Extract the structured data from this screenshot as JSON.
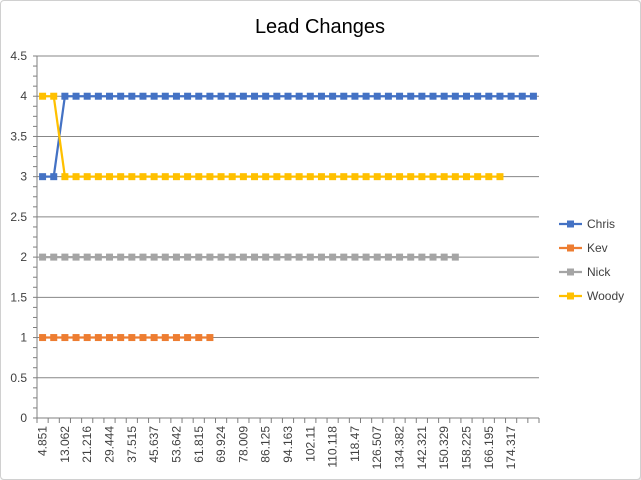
{
  "chart_data": {
    "type": "line",
    "title": "Lead Changes",
    "xlabel": "",
    "ylabel": "",
    "ylim": [
      0,
      4.5
    ],
    "y_ticks": [
      "0",
      "0.5",
      "1",
      "1.5",
      "2",
      "2.5",
      "3",
      "3.5",
      "4",
      "4.5"
    ],
    "x_ticks": [
      "4.851",
      "13.062",
      "21.216",
      "29.444",
      "37.515",
      "45.637",
      "53.642",
      "61.815",
      "69.924",
      "78.009",
      "86.125",
      "94.163",
      "102.11",
      "110.118",
      "118.47",
      "126.507",
      "134.382",
      "142.321",
      "150.329",
      "158.225",
      "166.195",
      "174.317"
    ],
    "grid": true,
    "legend_position": "right",
    "series": [
      {
        "name": "Chris",
        "color": "#4472C4",
        "values": [
          3,
          3,
          4,
          4,
          4,
          4,
          4,
          4,
          4,
          4,
          4,
          4,
          4,
          4,
          4,
          4,
          4,
          4,
          4,
          4,
          4,
          4,
          4,
          4,
          4,
          4,
          4,
          4,
          4,
          4,
          4,
          4,
          4,
          4,
          4,
          4,
          4,
          4,
          4,
          4,
          4,
          4,
          4,
          4,
          4
        ]
      },
      {
        "name": "Kev",
        "color": "#ED7D31",
        "values": [
          1,
          1,
          1,
          1,
          1,
          1,
          1,
          1,
          1,
          1,
          1,
          1,
          1,
          1,
          1,
          1
        ]
      },
      {
        "name": "Nick",
        "color": "#A5A5A5",
        "values": [
          2,
          2,
          2,
          2,
          2,
          2,
          2,
          2,
          2,
          2,
          2,
          2,
          2,
          2,
          2,
          2,
          2,
          2,
          2,
          2,
          2,
          2,
          2,
          2,
          2,
          2,
          2,
          2,
          2,
          2,
          2,
          2,
          2,
          2,
          2,
          2,
          2,
          2
        ]
      },
      {
        "name": "Woody",
        "color": "#FFC000",
        "values": [
          4,
          4,
          3,
          3,
          3,
          3,
          3,
          3,
          3,
          3,
          3,
          3,
          3,
          3,
          3,
          3,
          3,
          3,
          3,
          3,
          3,
          3,
          3,
          3,
          3,
          3,
          3,
          3,
          3,
          3,
          3,
          3,
          3,
          3,
          3,
          3,
          3,
          3,
          3,
          3,
          3,
          3
        ]
      }
    ]
  }
}
